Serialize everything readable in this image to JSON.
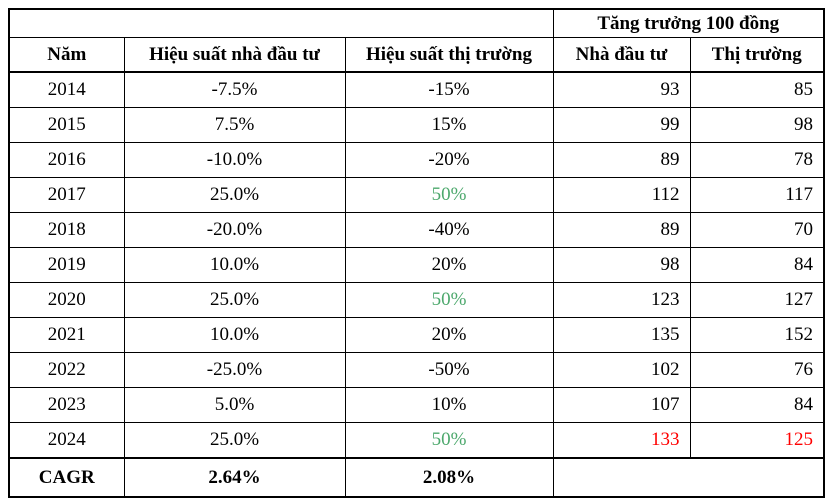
{
  "colors": {
    "green_highlight": "#4CA86C",
    "red_highlight": "#FF0000",
    "border": "#000000",
    "text": "#000000",
    "background": "#FFFFFF"
  },
  "chart_data": {
    "type": "table",
    "title": "",
    "top_header": {
      "empty_label": "",
      "growth_span_label": "Tăng trưởng 100 đồng"
    },
    "columns": [
      "Năm",
      "Hiệu suất nhà đầu tư",
      "Hiệu suất thị trường",
      "Nhà đầu tư",
      "Thị trường"
    ],
    "rows": [
      {
        "year": "2014",
        "investor_return": "-7.5%",
        "market_return": "-15%",
        "investor_growth": "93",
        "market_growth": "85"
      },
      {
        "year": "2015",
        "investor_return": "7.5%",
        "market_return": "15%",
        "investor_growth": "99",
        "market_growth": "98"
      },
      {
        "year": "2016",
        "investor_return": "-10.0%",
        "market_return": "-20%",
        "investor_growth": "89",
        "market_growth": "78"
      },
      {
        "year": "2017",
        "investor_return": "25.0%",
        "market_return": "50%",
        "market_return_color": "green",
        "investor_growth": "112",
        "market_growth": "117"
      },
      {
        "year": "2018",
        "investor_return": "-20.0%",
        "market_return": "-40%",
        "investor_growth": "89",
        "market_growth": "70"
      },
      {
        "year": "2019",
        "investor_return": "10.0%",
        "market_return": "20%",
        "investor_growth": "98",
        "market_growth": "84"
      },
      {
        "year": "2020",
        "investor_return": "25.0%",
        "market_return": "50%",
        "market_return_color": "green",
        "investor_growth": "123",
        "market_growth": "127"
      },
      {
        "year": "2021",
        "investor_return": "10.0%",
        "market_return": "20%",
        "investor_growth": "135",
        "market_growth": "152"
      },
      {
        "year": "2022",
        "investor_return": "-25.0%",
        "market_return": "-50%",
        "investor_growth": "102",
        "market_growth": "76"
      },
      {
        "year": "2023",
        "investor_return": "5.0%",
        "market_return": "10%",
        "investor_growth": "107",
        "market_growth": "84"
      },
      {
        "year": "2024",
        "investor_return": "25.0%",
        "market_return": "50%",
        "market_return_color": "green",
        "investor_growth": "133",
        "market_growth": "125",
        "growth_color": "red"
      }
    ],
    "footer": {
      "label": "CAGR",
      "investor_cagr": "2.64%",
      "market_cagr": "2.08%",
      "empty_label": ""
    }
  }
}
